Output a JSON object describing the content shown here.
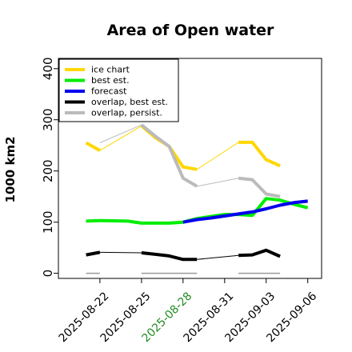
{
  "chart_data": {
    "type": "line",
    "title": "Area of Open water",
    "xlabel": "",
    "ylabel": "1000 km2",
    "ylim": [
      -10,
      420
    ],
    "xlim": [
      "2025-08-19",
      "2025-09-07"
    ],
    "yticks": [
      0,
      100,
      200,
      300,
      400
    ],
    "xticks": [
      "2025-08-22",
      "2025-08-25",
      "2025-08-28",
      "2025-08-31",
      "2025-09-03",
      "2025-09-06"
    ],
    "highlight_xtick": "2025-08-28",
    "highlight_color": "#228B22",
    "grid": false,
    "legend_position": "top-left",
    "series": [
      {
        "name": "ice chart",
        "color": "#FFD700",
        "dates": [
          "2025-08-21",
          "2025-08-22",
          "2025-08-25",
          "2025-08-26",
          "2025-08-27",
          "2025-08-28",
          "2025-08-29",
          "2025-09-01",
          "2025-09-02",
          "2025-09-03",
          "2025-09-04"
        ],
        "values": [
          255,
          240,
          288,
          265,
          248,
          208,
          203,
          256,
          256,
          222,
          210
        ],
        "gaps": [
          [
            1,
            2
          ],
          [
            6,
            7
          ]
        ]
      },
      {
        "name": "best est.",
        "color": "#00EE00",
        "dates": [
          "2025-08-21",
          "2025-08-22",
          "2025-08-24",
          "2025-08-25",
          "2025-08-26",
          "2025-08-27",
          "2025-08-28",
          "2025-08-29",
          "2025-08-30",
          "2025-08-31",
          "2025-09-01",
          "2025-09-02",
          "2025-09-03",
          "2025-09-04",
          "2025-09-05",
          "2025-09-06"
        ],
        "values": [
          102,
          103,
          102,
          98,
          98,
          98,
          100,
          107,
          111,
          115,
          115,
          113,
          146,
          143,
          135,
          128
        ]
      },
      {
        "name": "forecast",
        "color": "#0000EE",
        "dates": [
          "2025-08-28",
          "2025-08-29",
          "2025-08-30",
          "2025-08-31",
          "2025-09-01",
          "2025-09-02",
          "2025-09-03",
          "2025-09-04",
          "2025-09-05",
          "2025-09-06"
        ],
        "values": [
          100,
          105,
          108,
          112,
          116,
          120,
          126,
          133,
          138,
          141
        ]
      },
      {
        "name": "overlap, best est.",
        "color": "#000000",
        "dates": [
          "2025-08-21",
          "2025-08-22",
          "2025-08-25",
          "2025-08-26",
          "2025-08-27",
          "2025-08-28",
          "2025-08-29",
          "2025-09-01",
          "2025-09-02",
          "2025-09-03",
          "2025-09-04"
        ],
        "values": [
          36,
          41,
          40,
          37,
          34,
          27,
          27,
          35,
          36,
          45,
          33
        ],
        "gaps": [
          [
            1,
            2
          ],
          [
            6,
            7
          ]
        ]
      },
      {
        "name": "overlap, persist.",
        "color": "#BBBBBB",
        "dates": [
          "2025-08-21",
          "2025-08-22",
          "2025-08-25",
          "2025-08-26",
          "2025-08-27",
          "2025-08-28",
          "2025-08-29",
          "2025-09-01",
          "2025-09-02",
          "2025-09-03",
          "2025-09-04"
        ],
        "values": [
          288,
          255,
          290,
          268,
          248,
          186,
          170,
          186,
          183,
          155,
          150
        ],
        "gaps": [
          [
            1,
            2
          ],
          [
            6,
            7
          ]
        ],
        "skip_prefix": 2
      }
    ],
    "zero_markers": [
      {
        "from": "2025-08-21",
        "to": "2025-08-22"
      },
      {
        "from": "2025-08-25",
        "to": "2025-08-29"
      },
      {
        "from": "2025-09-01",
        "to": "2025-09-04"
      }
    ]
  }
}
